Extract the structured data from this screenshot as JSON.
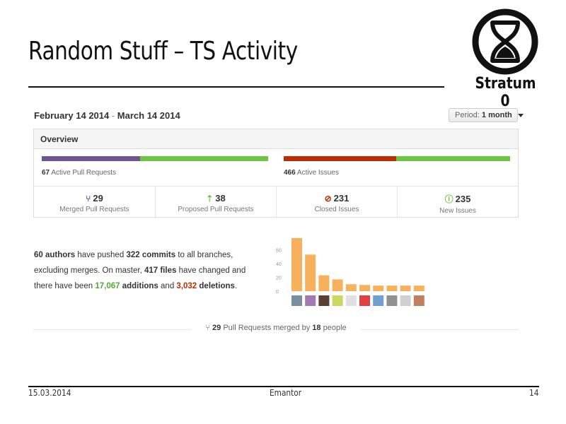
{
  "slide": {
    "title": "Random Stuff – TS Activity",
    "logo_text": "Stratum 0"
  },
  "pulse": {
    "date_start": "February 14 2014",
    "date_sep": " - ",
    "date_end": "March 14 2014",
    "period_label": "Period:",
    "period_value": "1 month",
    "overview_title": "Overview",
    "active_prs_count": "67",
    "active_prs_label": "Active Pull Requests",
    "active_issues_count": "466",
    "active_issues_label": "Active Issues",
    "pr_bar": {
      "merged_fraction": 0.433,
      "color_merged": "#6e5494",
      "color_proposed": "#6cc644"
    },
    "issue_bar": {
      "closed_fraction": 0.496,
      "color_closed": "#bd2c00",
      "color_new": "#6cc644"
    },
    "stats": [
      {
        "icon": "merge-icon",
        "glyph": "⑂",
        "value": "29",
        "label": "Merged Pull Requests",
        "color": "#6e5494"
      },
      {
        "icon": "pull-request-icon",
        "glyph": "⇡",
        "value": "38",
        "label": "Proposed Pull Requests",
        "color": "#6cc644"
      },
      {
        "icon": "issue-closed-icon",
        "glyph": "⊘",
        "value": "231",
        "label": "Closed Issues",
        "color": "#bd2c00"
      },
      {
        "icon": "issue-opened-icon",
        "glyph": "ⓘ",
        "value": "235",
        "label": "New Issues",
        "color": "#6cc644"
      }
    ],
    "summary": {
      "authors": "60 authors",
      "t1": " have pushed ",
      "commits": "322 commits",
      "t2": " to all branches, excluding merges. On master, ",
      "files": "417 files",
      "t3": " have changed and there have been ",
      "additions": "17,067",
      "t4": " ",
      "additions_word": "additions",
      "t5": " and ",
      "deletions": "3,032",
      "t6": " ",
      "deletions_word": "deletions",
      "t7": "."
    },
    "merged_summary": {
      "count": "29",
      "t1": " Pull Requests merged by ",
      "people": "18",
      "t2": " people"
    }
  },
  "chart_data": {
    "type": "bar",
    "values": [
      77,
      53,
      23,
      17,
      10,
      9,
      8,
      8,
      8,
      8
    ],
    "ylim": [
      0,
      80
    ],
    "yticks": [
      "0",
      "20",
      "40",
      "60"
    ],
    "bar_color": "#f7b05b",
    "avatar_colors": [
      "#7a8fa0",
      "#a07ab0",
      "#5a4030",
      "#c8d860",
      "#e0e0e0",
      "#e04040",
      "#6fa0d0",
      "#909090",
      "#d0d0d0",
      "#c08060"
    ]
  },
  "footer": {
    "date": "15.03.2014",
    "author": "Emantor",
    "page": "14"
  }
}
